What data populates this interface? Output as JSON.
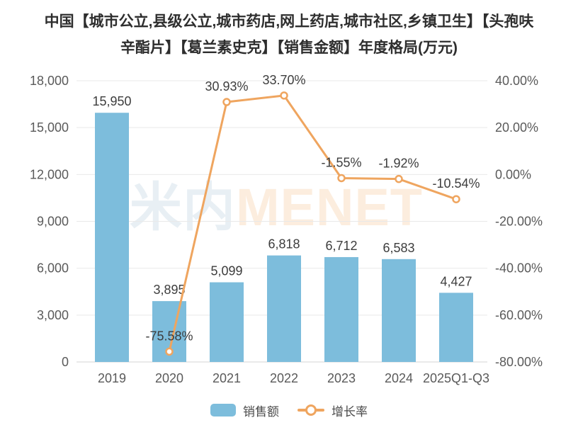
{
  "title": "中国【城市公立,县级公立,城市药店,网上药店,城市社区,乡镇卫生】【头孢呋辛酯片】【葛兰素史克】【销售金额】年度格局(万元)",
  "watermark": {
    "cn": "米内",
    "en": "MENET"
  },
  "legend": {
    "bar_label": "销售额",
    "line_label": "增长率"
  },
  "colors": {
    "bar": "#7dbddc",
    "line": "#efa55f",
    "marker_fill": "#ffffff",
    "grid": "#e9e9e9",
    "axis_line": "#d6d6d6",
    "axis_label": "#5a5a5a",
    "data_label": "#3d3d3d",
    "title_text": "#2e2e2e",
    "legend_text": "#4a4a4a",
    "watermark_cn": "#e8eff4",
    "watermark_en": "#fcedde"
  },
  "chart_data": {
    "type": "bar+line",
    "title": "中国【城市公立,县级公立,城市药店,网上药店,城市社区,乡镇卫生】【头孢呋辛酯片】【葛兰素史克】【销售金额】年度格局(万元)",
    "categories": [
      "2019",
      "2020",
      "2021",
      "2022",
      "2023",
      "2024",
      "2025Q1-Q3"
    ],
    "series": [
      {
        "name": "销售额",
        "type": "bar",
        "y_axis": "left",
        "unit": "万元",
        "values": [
          15950,
          3895,
          5099,
          6818,
          6712,
          6583,
          4427
        ],
        "labels": [
          "15,950",
          "3,895",
          "5,099",
          "6,818",
          "6,712",
          "6,583",
          "4,427"
        ]
      },
      {
        "name": "增长率",
        "type": "line",
        "y_axis": "right",
        "unit": "%",
        "values": [
          null,
          -75.58,
          30.93,
          33.7,
          -1.55,
          -1.92,
          -10.54
        ],
        "labels": [
          "",
          "-75.58%",
          "30.93%",
          "33.70%",
          "-1.55%",
          "-1.92%",
          "-10.54%"
        ]
      }
    ],
    "left_axis": {
      "min": 0,
      "max": 18000,
      "interval": 3000,
      "ticks_top_to_bottom": [
        "18,000",
        "15,000",
        "12,000",
        "9,000",
        "6,000",
        "3,000",
        "0"
      ]
    },
    "right_axis": {
      "min": -80,
      "max": 40,
      "interval": 20,
      "ticks_top_to_bottom": [
        "40.00%",
        "20.00%",
        "0.00%",
        "-20.00%",
        "-40.00%",
        "-60.00%",
        "-80.00%"
      ]
    },
    "grid": true,
    "legend_position": "bottom"
  }
}
